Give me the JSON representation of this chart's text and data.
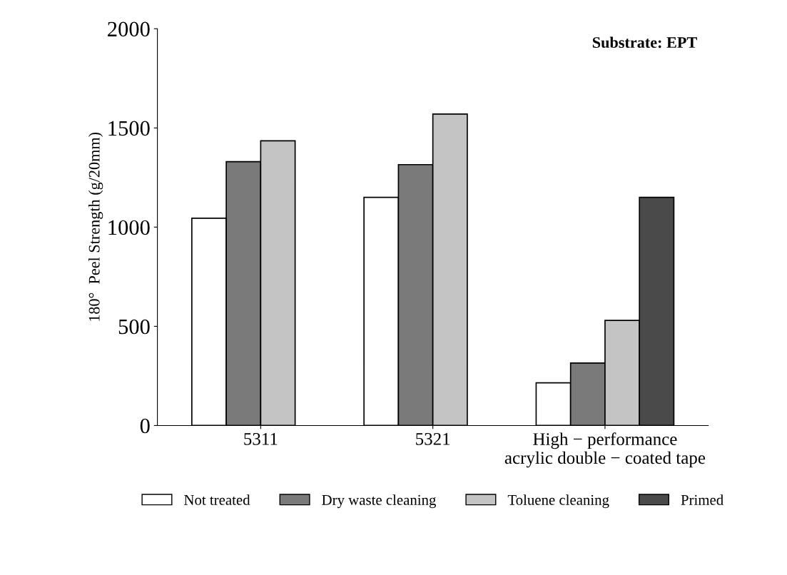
{
  "chart_data": {
    "type": "bar",
    "ylabel": "180°  Peel Strength (g/20mm)",
    "annotations": [
      "Substrate: EPT"
    ],
    "categories": [
      "5311",
      "5321",
      "High − performance\nacrylic double − coated tape"
    ],
    "series": [
      {
        "name": "Not treated",
        "color": "#ffffff",
        "values": [
          1045,
          1150,
          215
        ]
      },
      {
        "name": "Dry waste cleaning",
        "color": "#7a7a7a",
        "values": [
          1330,
          1315,
          315
        ]
      },
      {
        "name": "Toluene cleaning",
        "color": "#c4c4c4",
        "values": [
          1435,
          1570,
          530
        ]
      },
      {
        "name": "Primed",
        "color": "#4a4a4a",
        "values": [
          null,
          null,
          1150
        ]
      }
    ],
    "ylim": [
      0,
      2000
    ],
    "yticks": [
      0,
      500,
      1000,
      1500,
      2000
    ],
    "grid": false,
    "legend": "bottom"
  }
}
